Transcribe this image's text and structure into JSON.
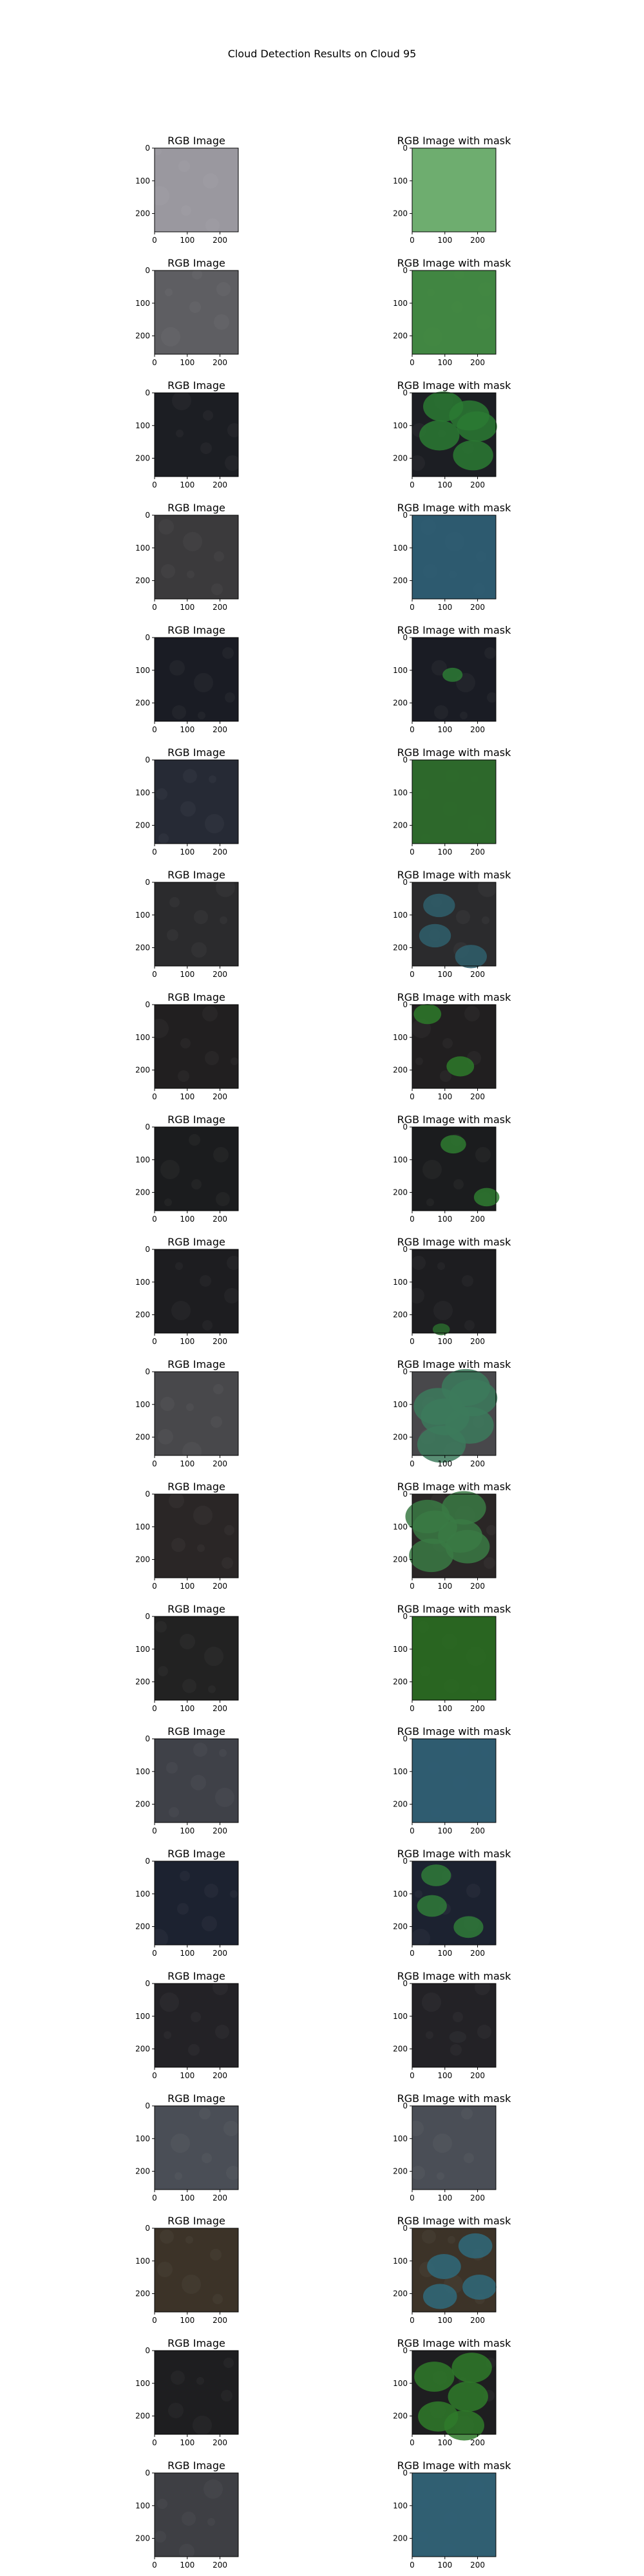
{
  "title": "Cloud Detection Results on Cloud 95",
  "panel_titles": {
    "left": "RGB Image",
    "right": "RGB Image with mask"
  },
  "axis": {
    "x_ticks": [
      "0",
      "100",
      "200"
    ],
    "y_ticks": [
      "0",
      "100",
      "200"
    ],
    "x_range": [
      0,
      256
    ],
    "y_range": [
      0,
      256
    ]
  },
  "colors": {
    "mask_overlay": "#3d8f3d",
    "water_blue": "#2f6b8a"
  },
  "chart_data": {
    "type": "image-grid",
    "title": "Cloud Detection Results on Cloud 95",
    "rows": 20,
    "columns": [
      "RGB Image",
      "RGB Image with mask"
    ],
    "samples": [
      {
        "rgb": "#9a989f",
        "mask": "#6aaf6a",
        "coverage": 1.0
      },
      {
        "rgb": "#5e5e62",
        "mask": "#3f8a3f",
        "coverage": 1.0
      },
      {
        "rgb": "#1c1e23",
        "mask": "#2a7a32",
        "coverage": 0.6
      },
      {
        "rgb": "#3b3a3c",
        "mask": "#2c5d74",
        "coverage": 1.0
      },
      {
        "rgb": "#1a1c24",
        "mask": "#2d7a35",
        "coverage": 0.12
      },
      {
        "rgb": "#262a35",
        "mask": "#2e6e2a",
        "coverage": 0.95
      },
      {
        "rgb": "#2b2b2d",
        "mask": "#2f5f6c",
        "coverage": 0.4
      },
      {
        "rgb": "#211f20",
        "mask": "#2d7a2a",
        "coverage": 0.3
      },
      {
        "rgb": "#1b1c1e",
        "mask": "#2e7a30",
        "coverage": 0.25
      },
      {
        "rgb": "#1d1d20",
        "mask": "#2a6a2e",
        "coverage": 0.05
      },
      {
        "rgb": "#48484b",
        "mask": "#3c7a5c",
        "coverage": 0.8
      },
      {
        "rgb": "#2a2626",
        "mask": "#3a7a44",
        "coverage": 0.7
      },
      {
        "rgb": "#222222",
        "mask": "#2a6b22",
        "coverage": 0.97
      },
      {
        "rgb": "#3f4148",
        "mask": "#2e5e74",
        "coverage": 1.0
      },
      {
        "rgb": "#1c2230",
        "mask": "#2f7a38",
        "coverage": 0.35
      },
      {
        "rgb": "#232226",
        "mask": "#2b2b30",
        "coverage": 0.05
      },
      {
        "rgb": "#4a4e56",
        "mask": "#4d5058",
        "coverage": 0.02
      },
      {
        "rgb": "#3c3328",
        "mask": "#2f6a7a",
        "coverage": 0.45
      },
      {
        "rgb": "#1e1e20",
        "mask": "#2f7a2a",
        "coverage": 0.6
      },
      {
        "rgb": "#3e3f44",
        "mask": "#2f6276",
        "coverage": 1.0
      }
    ]
  }
}
